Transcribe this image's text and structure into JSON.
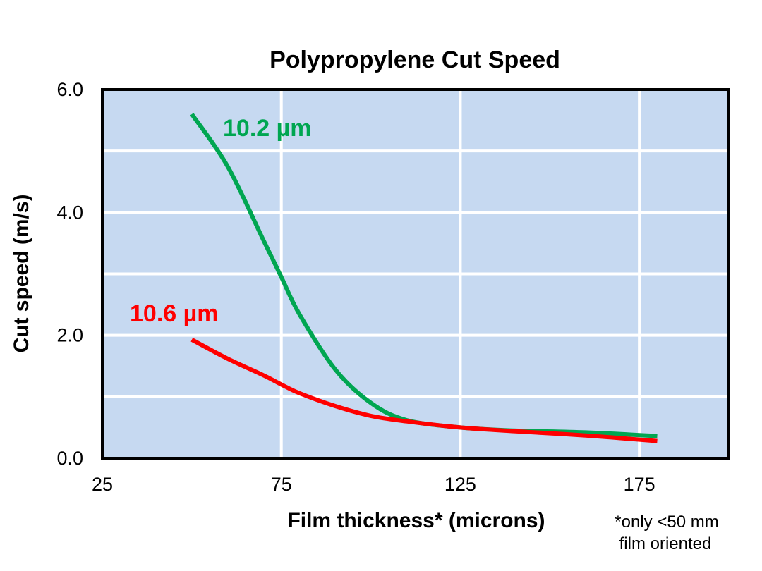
{
  "chart_data": {
    "type": "line",
    "title": "Polypropylene Cut Speed",
    "xlabel": "Film thickness* (microns)",
    "ylabel": "Cut speed (m/s)",
    "footnote": [
      "*only <50 mm",
      "film oriented"
    ],
    "xlim": [
      25,
      200
    ],
    "ylim": [
      0,
      6
    ],
    "x_ticks": [
      25,
      75,
      125,
      175
    ],
    "x_tick_labels": [
      "25",
      "75",
      "125",
      "175"
    ],
    "y_ticks": [
      0,
      2,
      4,
      6
    ],
    "y_tick_labels": [
      "0.0",
      "2.0",
      "4.0",
      "6.0"
    ],
    "y_gridlines": [
      0,
      1,
      2,
      3,
      4,
      5,
      6
    ],
    "x_gridlines": [
      75,
      125,
      175
    ],
    "grid": true,
    "plot_background": "#c6d9f1",
    "series": [
      {
        "name": "10.2 µm",
        "color": "#00a651",
        "x": [
          50,
          60,
          70,
          75,
          80,
          90,
          100,
          110,
          125,
          140,
          160,
          180
        ],
        "values": [
          5.6,
          4.75,
          3.55,
          2.95,
          2.35,
          1.45,
          0.9,
          0.62,
          0.5,
          0.45,
          0.42,
          0.36
        ]
      },
      {
        "name": "10.6 µm",
        "color": "#ff0000",
        "x": [
          50,
          60,
          70,
          75,
          80,
          90,
          100,
          110,
          125,
          140,
          160,
          180
        ],
        "values": [
          1.93,
          1.62,
          1.35,
          1.2,
          1.06,
          0.85,
          0.69,
          0.6,
          0.5,
          0.44,
          0.37,
          0.28
        ]
      }
    ]
  }
}
